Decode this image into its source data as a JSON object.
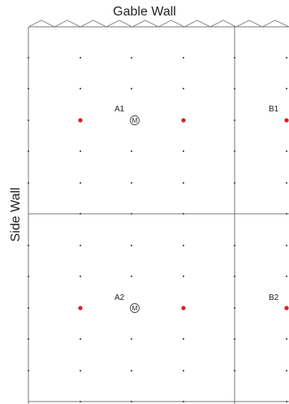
{
  "titles": {
    "gable_wall": "Gable Wall",
    "side_wall": "Side Wall"
  },
  "zones": [
    {
      "label": "A1",
      "marker": "M"
    },
    {
      "label": "B1",
      "marker": ""
    },
    {
      "label": "A2",
      "marker": "M"
    },
    {
      "label": "B2",
      "marker": ""
    }
  ],
  "colors": {
    "line": "#777777",
    "dot": "#333333",
    "red_dot": "#d42020",
    "text": "#222222"
  }
}
